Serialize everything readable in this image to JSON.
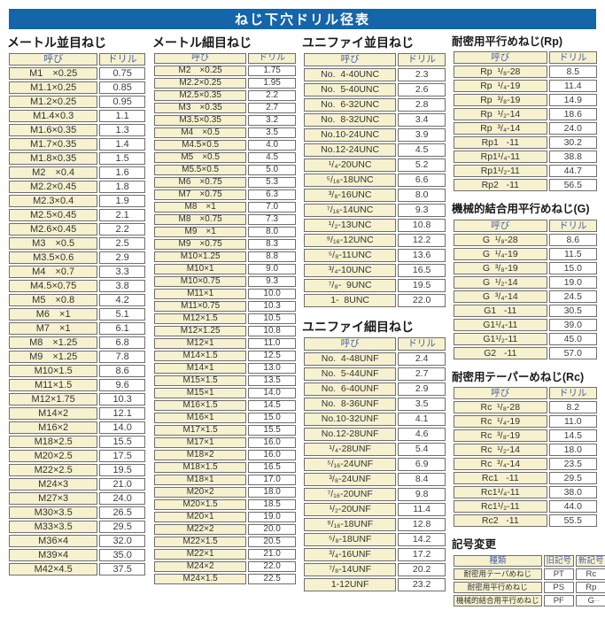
{
  "page_title": "ねじ下穴ドリル径表",
  "common_headers": {
    "name": "呼び",
    "drill": "ドリル"
  },
  "sections": {
    "metric_coarse": {
      "title": "メートル並目ねじ",
      "rows": [
        [
          "M1　×0.25",
          "0.75"
        ],
        [
          "M1.1×0.25",
          "0.85"
        ],
        [
          "M1.2×0.25",
          "0.95"
        ],
        [
          "M1.4×0.3",
          "1.1"
        ],
        [
          "M1.6×0.35",
          "1.3"
        ],
        [
          "M1.7×0.35",
          "1.4"
        ],
        [
          "M1.8×0.35",
          "1.5"
        ],
        [
          "M2　×0.4",
          "1.6"
        ],
        [
          "M2.2×0.45",
          "1.8"
        ],
        [
          "M2.3×0.4",
          "1.9"
        ],
        [
          "M2.5×0.45",
          "2.1"
        ],
        [
          "M2.6×0.45",
          "2.2"
        ],
        [
          "M3　×0.5",
          "2.5"
        ],
        [
          "M3.5×0.6",
          "2.9"
        ],
        [
          "M4　×0.7",
          "3.3"
        ],
        [
          "M4.5×0.75",
          "3.8"
        ],
        [
          "M5　×0.8",
          "4.2"
        ],
        [
          "M6　×1",
          "5.1"
        ],
        [
          "M7　×1",
          "6.1"
        ],
        [
          "M8　×1.25",
          "6.8"
        ],
        [
          "M9　×1.25",
          "7.8"
        ],
        [
          "M10×1.5",
          "8.6"
        ],
        [
          "M11×1.5",
          "9.6"
        ],
        [
          "M12×1.75",
          "10.3"
        ],
        [
          "M14×2",
          "12.1"
        ],
        [
          "M16×2",
          "14.0"
        ],
        [
          "M18×2.5",
          "15.5"
        ],
        [
          "M20×2.5",
          "17.5"
        ],
        [
          "M22×2.5",
          "19.5"
        ],
        [
          "M24×3",
          "21.0"
        ],
        [
          "M27×3",
          "24.0"
        ],
        [
          "M30×3.5",
          "26.5"
        ],
        [
          "M33×3.5",
          "29.5"
        ],
        [
          "M36×4",
          "32.0"
        ],
        [
          "M39×4",
          "35.0"
        ],
        [
          "M42×4.5",
          "37.5"
        ]
      ]
    },
    "metric_fine": {
      "title": "メートル細目ねじ",
      "rows": [
        [
          "M2　×0.25",
          "1.75"
        ],
        [
          "M2.2×0.25",
          "1.95"
        ],
        [
          "M2.5×0.35",
          "2.2"
        ],
        [
          "M3　×0.35",
          "2.7"
        ],
        [
          "M3.5×0.35",
          "3.2"
        ],
        [
          "M4　×0.5",
          "3.5"
        ],
        [
          "M4.5×0.5",
          "4.0"
        ],
        [
          "M5　×0.5",
          "4.5"
        ],
        [
          "M5.5×0.5",
          "5.0"
        ],
        [
          "M6　×0.75",
          "5.3"
        ],
        [
          "M7　×0.75",
          "6.3"
        ],
        [
          "M8　×1",
          "7.0"
        ],
        [
          "M8　×0.75",
          "7.3"
        ],
        [
          "M9　×1",
          "8.0"
        ],
        [
          "M9　×0.75",
          "8.3"
        ],
        [
          "M10×1.25",
          "8.8"
        ],
        [
          "M10×1",
          "9.0"
        ],
        [
          "M10×0.75",
          "9.3"
        ],
        [
          "M11×1",
          "10.0"
        ],
        [
          "M11×0.75",
          "10.3"
        ],
        [
          "M12×1.5",
          "10.5"
        ],
        [
          "M12×1.25",
          "10.8"
        ],
        [
          "M12×1",
          "11.0"
        ],
        [
          "M14×1.5",
          "12.5"
        ],
        [
          "M14×1",
          "13.0"
        ],
        [
          "M15×1.5",
          "13.5"
        ],
        [
          "M15×1",
          "14.0"
        ],
        [
          "M16×1.5",
          "14.5"
        ],
        [
          "M16×1",
          "15.0"
        ],
        [
          "M17×1.5",
          "15.5"
        ],
        [
          "M17×1",
          "16.0"
        ],
        [
          "M18×2",
          "16.0"
        ],
        [
          "M18×1.5",
          "16.5"
        ],
        [
          "M18×1",
          "17.0"
        ],
        [
          "M20×2",
          "18.0"
        ],
        [
          "M20×1.5",
          "18.5"
        ],
        [
          "M20×1",
          "19.0"
        ],
        [
          "M22×2",
          "20.0"
        ],
        [
          "M22×1.5",
          "20.5"
        ],
        [
          "M22×1",
          "21.0"
        ],
        [
          "M24×2",
          "22.0"
        ],
        [
          "M24×1.5",
          "22.5"
        ]
      ]
    },
    "unified_coarse": {
      "title": "ユニファイ並目ねじ",
      "rows": [
        [
          "No.  4-40UNC",
          "2.3"
        ],
        [
          "No.  5-40UNC",
          "2.6"
        ],
        [
          "No.  6-32UNC",
          "2.8"
        ],
        [
          "No.  8-32UNC",
          "3.4"
        ],
        [
          "No.10-24UNC",
          "3.9"
        ],
        [
          "No.12-24UNC",
          "4.5"
        ],
        [
          "¹/₄-20UNC",
          "5.2"
        ],
        [
          "⁵/₁₆-18UNC",
          "6.6"
        ],
        [
          "³/₈-16UNC",
          "8.0"
        ],
        [
          "⁷/₁₆-14UNC",
          "9.3"
        ],
        [
          "¹/₂-13UNC",
          "10.8"
        ],
        [
          "⁹/₁₆-12UNC",
          "12.2"
        ],
        [
          "⁵/₈-11UNC",
          "13.6"
        ],
        [
          "³/₄-10UNC",
          "16.5"
        ],
        [
          "⁷/₈-  9UNC",
          "19.5"
        ],
        [
          "1-  8UNC",
          "22.0"
        ]
      ]
    },
    "unified_fine": {
      "title": "ユニファイ細目ねじ",
      "rows": [
        [
          "No.  4-48UNF",
          "2.4"
        ],
        [
          "No.  5-44UNF",
          "2.7"
        ],
        [
          "No.  6-40UNF",
          "2.9"
        ],
        [
          "No.  8-36UNF",
          "3.5"
        ],
        [
          "No.10-32UNF",
          "4.1"
        ],
        [
          "No.12-28UNF",
          "4.6"
        ],
        [
          "¹/₄-28UNF",
          "5.4"
        ],
        [
          "⁵/₁₆-24UNF",
          "6.9"
        ],
        [
          "³/₈-24UNF",
          "8.4"
        ],
        [
          "⁷/₁₆-20UNF",
          "9.8"
        ],
        [
          "¹/₂-20UNF",
          "11.4"
        ],
        [
          "⁹/₁₆-18UNF",
          "12.8"
        ],
        [
          "⁵/₈-18UNF",
          "14.2"
        ],
        [
          "³/₄-16UNF",
          "17.2"
        ],
        [
          "⁷/₈-14UNF",
          "20.2"
        ],
        [
          "1-12UNF",
          "23.2"
        ]
      ]
    },
    "rp": {
      "title": "耐密用平行めねじ(Rp)",
      "rows": [
        [
          "Rp  ¹/₈-28",
          "8.5"
        ],
        [
          "Rp  ¹/₄-19",
          "11.4"
        ],
        [
          "Rp  ³/₈-19",
          "14.9"
        ],
        [
          "Rp  ¹/₂-14",
          "18.6"
        ],
        [
          "Rp  ³/₄-14",
          "24.0"
        ],
        [
          "Rp1   -11",
          "30.2"
        ],
        [
          "Rp1¹/₄-11",
          "38.8"
        ],
        [
          "Rp1¹/₂-11",
          "44.7"
        ],
        [
          "Rp2   -11",
          "56.5"
        ]
      ]
    },
    "g": {
      "title": "機械的結合用平行めねじ(G)",
      "rows": [
        [
          "G  ¹/₈-28",
          "8.6"
        ],
        [
          "G  ¹/₄-19",
          "11.5"
        ],
        [
          "G  ³/₈-19",
          "15.0"
        ],
        [
          "G  ¹/₂-14",
          "19.0"
        ],
        [
          "G  ³/₄-14",
          "24.5"
        ],
        [
          "G1   -11",
          "30.5"
        ],
        [
          "G1¹/₄-11",
          "39.0"
        ],
        [
          "G1¹/₂-11",
          "45.0"
        ],
        [
          "G2   -11",
          "57.0"
        ]
      ]
    },
    "rc": {
      "title": "耐密用テーパーめねじ(Rc)",
      "rows": [
        [
          "Rc  ¹/₈-28",
          "8.2"
        ],
        [
          "Rc  ¹/₄-19",
          "11.0"
        ],
        [
          "Rc  ³/₈-19",
          "14.5"
        ],
        [
          "Rc  ¹/₂-14",
          "18.0"
        ],
        [
          "Rc  ³/₄-14",
          "23.5"
        ],
        [
          "Rc1   -11",
          "29.5"
        ],
        [
          "Rc1¹/₄-11",
          "38.0"
        ],
        [
          "Rc1¹/₂-11",
          "44.0"
        ],
        [
          "Rc2   -11",
          "55.5"
        ]
      ]
    },
    "symbol_change": {
      "title": "記号変更",
      "headers": [
        "種類",
        "旧記号",
        "新記号"
      ],
      "rows": [
        [
          "耐密用テーパめねじ",
          "PT",
          "Rc"
        ],
        [
          "耐密用平行めねじ",
          "PS",
          "Rp"
        ],
        [
          "機械的結合用平行めねじ",
          "PF",
          "G"
        ]
      ]
    }
  },
  "colors": {
    "banner_blue": "#1565ab",
    "cell_cream": "#f6f1cf",
    "header_text_blue": "#4a62a8"
  },
  "corner_mark": "--"
}
